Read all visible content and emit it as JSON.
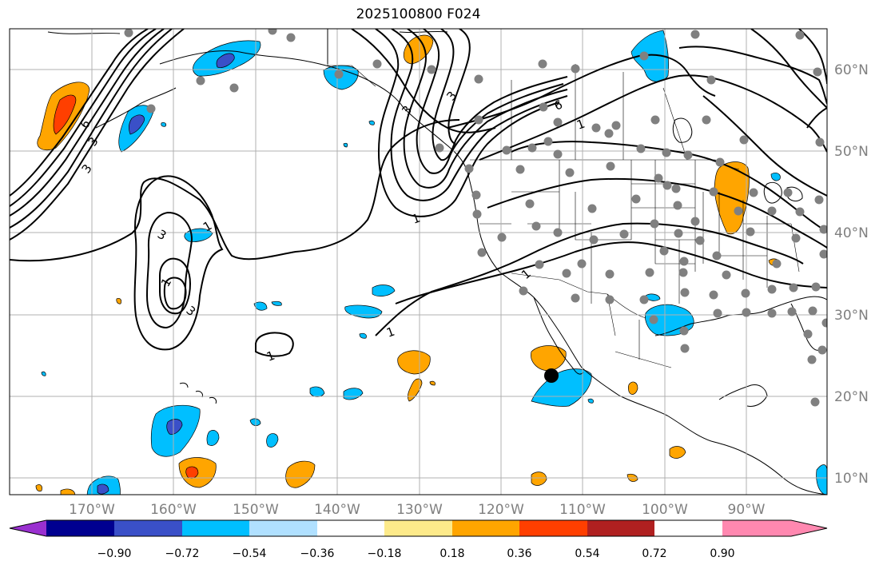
{
  "title": "2025100800 F024",
  "lon_labels": [
    "170°W",
    "160°W",
    "150°W",
    "140°W",
    "130°W",
    "120°W",
    "110°W",
    "100°W",
    "90°W"
  ],
  "lat_labels": [
    "60°N",
    "50°N",
    "40°N",
    "30°N",
    "20°N",
    "10°N"
  ],
  "colorbar": {
    "colors": [
      "#9a30d0",
      "#000090",
      "#3a50c8",
      "#00bfff",
      "#b0e0ff",
      "#ffffff",
      "#fdea8a",
      "#ffa500",
      "#ff3f00",
      "#b02020",
      "#ff88b0"
    ],
    "tick_labels": [
      "−0.90",
      "−0.72",
      "−0.54",
      "−0.36",
      "−0.18",
      "0.18",
      "0.36",
      "0.54",
      "0.72",
      "0.90"
    ]
  },
  "contour_labels": [
    "1",
    "3",
    "3",
    "1",
    "3",
    "6",
    "1",
    "1",
    "1",
    "6",
    "3",
    "3",
    "1",
    "1",
    "3"
  ],
  "stations": [
    [
      161,
      41
    ],
    [
      341,
      38
    ],
    [
      364,
      47
    ],
    [
      472,
      80
    ],
    [
      540,
      87
    ],
    [
      424,
      93
    ],
    [
      599,
      99
    ],
    [
      679,
      80
    ],
    [
      720,
      86
    ],
    [
      806,
      70
    ],
    [
      870,
      43
    ],
    [
      1001,
      44
    ],
    [
      890,
      100
    ],
    [
      1023,
      90
    ],
    [
      251,
      101
    ],
    [
      293,
      110
    ],
    [
      189,
      136
    ],
    [
      599,
      150
    ],
    [
      680,
      134
    ],
    [
      698,
      153
    ],
    [
      686,
      177
    ],
    [
      666,
      185
    ],
    [
      746,
      160
    ],
    [
      771,
      157
    ],
    [
      762,
      167
    ],
    [
      820,
      150
    ],
    [
      884,
      150
    ],
    [
      550,
      185
    ],
    [
      634,
      188
    ],
    [
      698,
      193
    ],
    [
      802,
      186
    ],
    [
      834,
      191
    ],
    [
      861,
      194
    ],
    [
      901,
      203
    ],
    [
      1026,
      178
    ],
    [
      931,
      175
    ],
    [
      587,
      211
    ],
    [
      651,
      212
    ],
    [
      713,
      216
    ],
    [
      764,
      208
    ],
    [
      824,
      223
    ],
    [
      835,
      232
    ],
    [
      846,
      236
    ],
    [
      893,
      240
    ],
    [
      943,
      241
    ],
    [
      986,
      241
    ],
    [
      1001,
      265
    ],
    [
      966,
      264
    ],
    [
      596,
      244
    ],
    [
      663,
      255
    ],
    [
      741,
      261
    ],
    [
      796,
      249
    ],
    [
      848,
      257
    ],
    [
      870,
      277
    ],
    [
      924,
      264
    ],
    [
      1025,
      250
    ],
    [
      597,
      268
    ],
    [
      628,
      297
    ],
    [
      671,
      283
    ],
    [
      698,
      291
    ],
    [
      743,
      300
    ],
    [
      781,
      293
    ],
    [
      819,
      280
    ],
    [
      849,
      292
    ],
    [
      876,
      301
    ],
    [
      939,
      290
    ],
    [
      996,
      298
    ],
    [
      1031,
      287
    ],
    [
      1031,
      318
    ],
    [
      603,
      316
    ],
    [
      675,
      331
    ],
    [
      728,
      330
    ],
    [
      831,
      314
    ],
    [
      856,
      327
    ],
    [
      897,
      320
    ],
    [
      972,
      330
    ],
    [
      709,
      342
    ],
    [
      763,
      343
    ],
    [
      813,
      341
    ],
    [
      855,
      341
    ],
    [
      909,
      344
    ],
    [
      655,
      364
    ],
    [
      720,
      373
    ],
    [
      763,
      375
    ],
    [
      806,
      375
    ],
    [
      857,
      366
    ],
    [
      893,
      369
    ],
    [
      933,
      367
    ],
    [
      966,
      362
    ],
    [
      993,
      360
    ],
    [
      1021,
      359
    ],
    [
      818,
      400
    ],
    [
      856,
      414
    ],
    [
      898,
      392
    ],
    [
      934,
      391
    ],
    [
      966,
      392
    ],
    [
      991,
      390
    ],
    [
      1017,
      389
    ],
    [
      1034,
      404
    ],
    [
      1011,
      418
    ],
    [
      1029,
      438
    ],
    [
      1016,
      450
    ],
    [
      857,
      436
    ],
    [
      1020,
      503
    ]
  ]
}
